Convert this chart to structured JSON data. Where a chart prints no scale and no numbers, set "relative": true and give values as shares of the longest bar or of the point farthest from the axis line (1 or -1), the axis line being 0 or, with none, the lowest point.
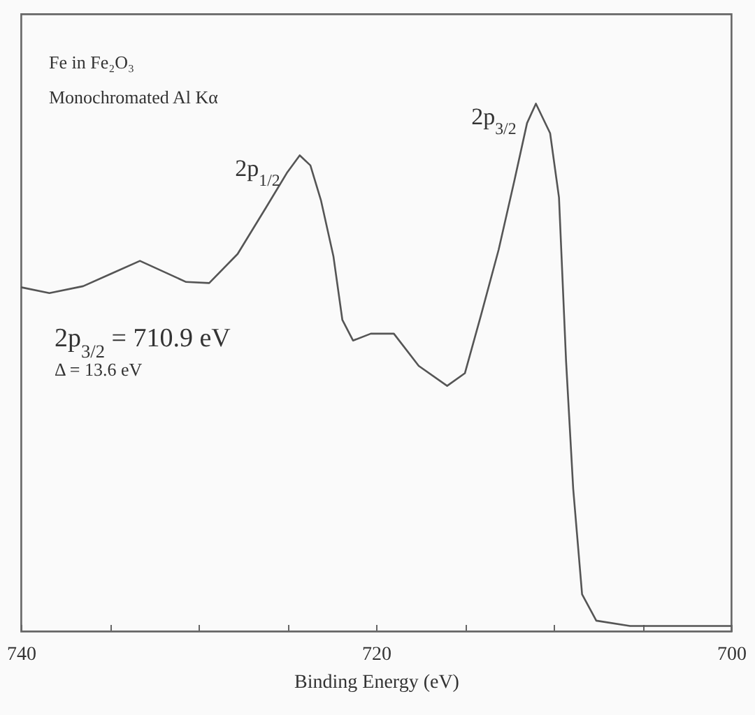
{
  "chart_data": {
    "type": "line",
    "xlabel": "Binding Energy (eV)",
    "relative": true,
    "x": [
      740,
      738.4,
      736.5,
      734.9,
      733.3,
      730.7,
      729.4,
      727.8,
      726.2,
      725.0,
      724.3,
      723.7,
      723.1,
      722.4,
      721.9,
      721.3,
      720.3,
      719.0,
      717.6,
      716.0,
      715.0,
      714.1,
      713.1,
      712.2,
      711.5,
      711.0,
      710.2,
      709.7,
      709.3,
      708.9,
      708.4,
      707.6,
      705.7,
      700
    ],
    "series": [
      {
        "color": "#555555",
        "values": [
          0.652,
          0.641,
          0.654,
          0.678,
          0.702,
          0.662,
          0.66,
          0.715,
          0.803,
          0.87,
          0.902,
          0.883,
          0.816,
          0.71,
          0.59,
          0.551,
          0.564,
          0.564,
          0.503,
          0.465,
          0.489,
          0.598,
          0.723,
          0.856,
          0.963,
          1.0,
          0.944,
          0.822,
          0.511,
          0.27,
          0.07,
          0.02,
          0.01,
          0.01
        ]
      }
    ],
    "xlim": [
      740,
      700
    ],
    "xticks": [
      740,
      {
        "value": 735,
        "label": null
      },
      {
        "value": 730,
        "label": null
      },
      {
        "value": 725,
        "label": null
      },
      720,
      {
        "value": 715,
        "label": null
      },
      {
        "value": 710,
        "label": null
      },
      {
        "value": 705,
        "label": null
      },
      700
    ],
    "annotations": [
      "Fe in Fe₂O₃",
      "Monochromated Al Kα",
      {
        "text": "2p$_{1/2}$",
        "x": 724.3,
        "y": 0.902
      },
      {
        "text": "2p$_{3/2}$",
        "x": 711.0,
        "y": 1.0
      },
      "2p$_{3/2}$ = 710.9 eV",
      "Δ = 13.6 eV"
    ],
    "grid": false,
    "line_style": "solid",
    "marker": "none"
  }
}
